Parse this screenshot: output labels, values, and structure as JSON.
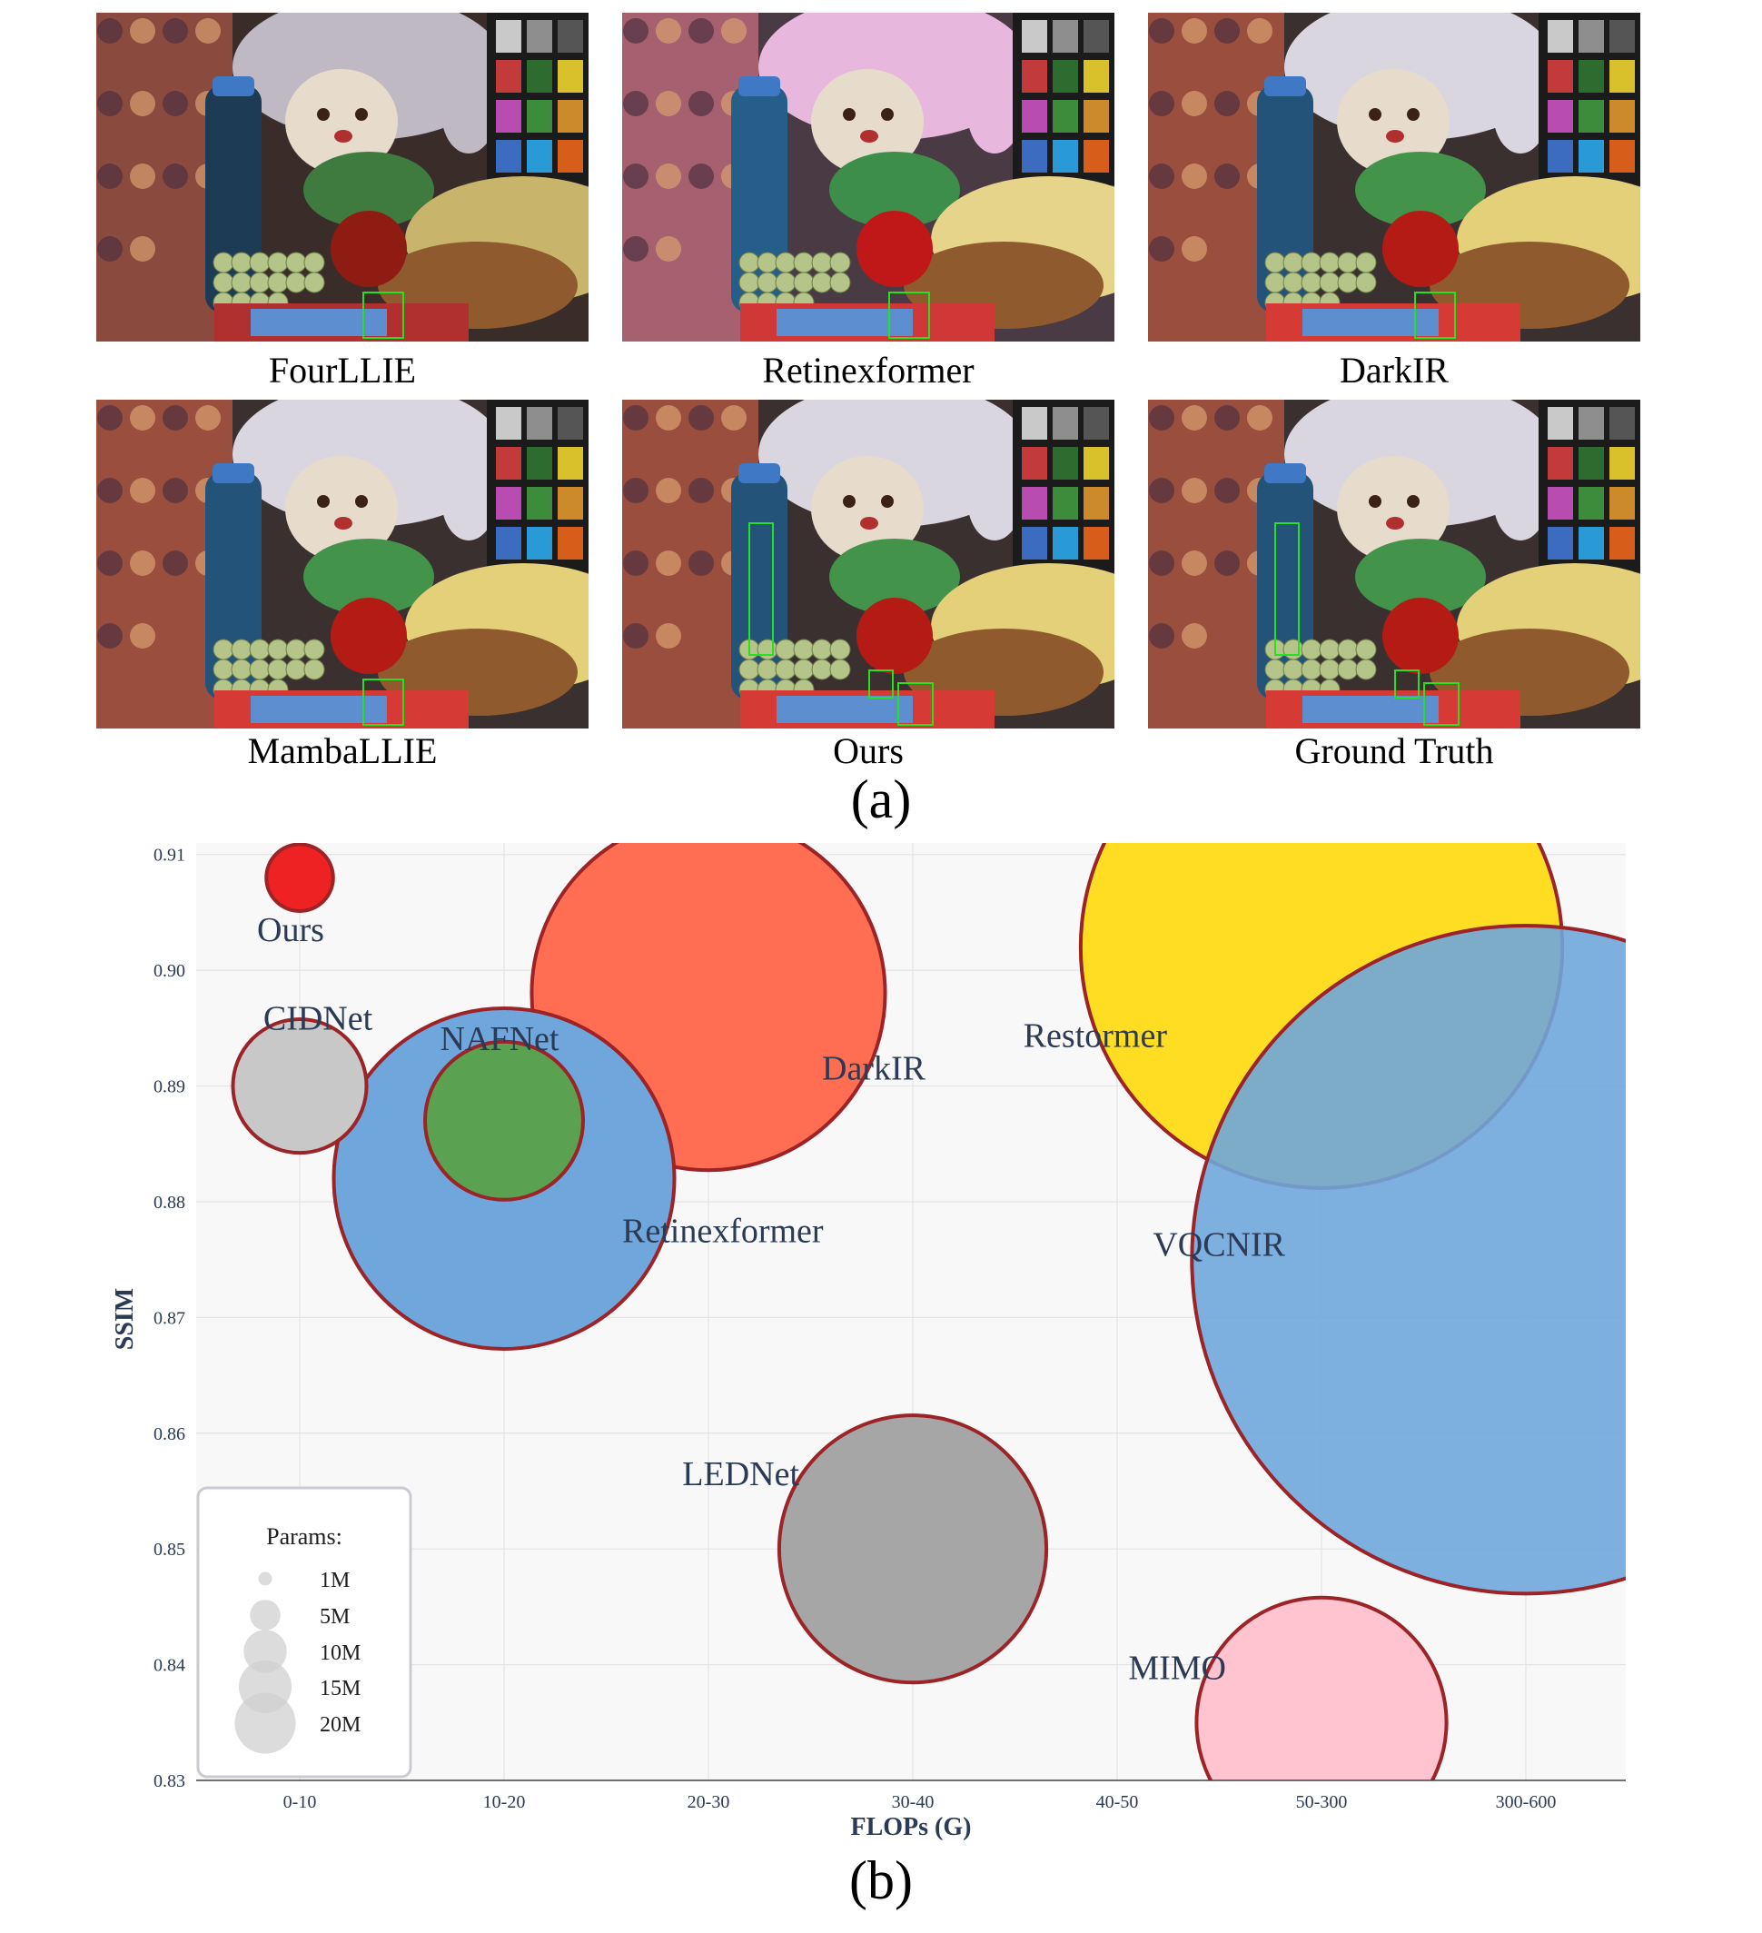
{
  "panel_a": {
    "label": "(a)",
    "images": [
      {
        "caption": "FourLLIE",
        "tone": "dark"
      },
      {
        "caption": "Retinexformer",
        "tone": "pink"
      },
      {
        "caption": "DarkIR",
        "tone": "normal"
      },
      {
        "caption": "MambaLLIE",
        "tone": "normal"
      },
      {
        "caption": "Ours",
        "tone": "normal"
      },
      {
        "caption": "Ground Truth",
        "tone": "normal"
      }
    ]
  },
  "panel_b": {
    "label": "(b)"
  },
  "chart_data": {
    "type": "scatter",
    "subtype": "bubble",
    "xlabel": "FLOPs (G)",
    "ylabel": "SSIM",
    "categories": [
      "0-10",
      "10-20",
      "20-30",
      "30-40",
      "40-50",
      "50-300",
      "300-600"
    ],
    "yticks": [
      "0.83",
      "0.84",
      "0.85",
      "0.86",
      "0.87",
      "0.88",
      "0.89",
      "0.90",
      "0.91"
    ],
    "ylim": [
      0.83,
      0.911
    ],
    "grid": true,
    "legend": {
      "title": "Params:",
      "placement": "bottom-left",
      "entries": [
        {
          "label": "1M",
          "params": 1
        },
        {
          "label": "5M",
          "params": 5
        },
        {
          "label": "10M",
          "params": 10
        },
        {
          "label": "15M",
          "params": 15
        },
        {
          "label": "20M",
          "params": 20
        }
      ]
    },
    "points": [
      {
        "name": "Ours",
        "x": "0-10",
        "y": 0.908,
        "params": 0.5,
        "color": "#ee2222"
      },
      {
        "name": "CIDNet",
        "x": "0-10",
        "y": 0.89,
        "params": 2,
        "color": "#c8c8c8"
      },
      {
        "name": "Retinexformer",
        "x": "10-20",
        "y": 0.882,
        "params": 13,
        "color": "#6fa6dc"
      },
      {
        "name": "NAFNet",
        "x": "10-20",
        "y": 0.887,
        "params": 2.8,
        "color": "#5aa152"
      },
      {
        "name": "DarkIR",
        "x": "20-30",
        "y": 0.898,
        "params": 14,
        "color": "#ff6e52"
      },
      {
        "name": "LEDNet",
        "x": "30-40",
        "y": 0.85,
        "params": 8,
        "color": "#a6a6a6"
      },
      {
        "name": "Restormer",
        "x": "50-300",
        "y": 0.902,
        "params": 26,
        "color": "#ffdd22"
      },
      {
        "name": "MIMO",
        "x": "50-300",
        "y": 0.835,
        "params": 7,
        "color": "#ffc4d0"
      },
      {
        "name": "VQCNIR",
        "x": "300-600",
        "y": 0.875,
        "params": 50,
        "color": "#6fa6dc"
      }
    ]
  }
}
